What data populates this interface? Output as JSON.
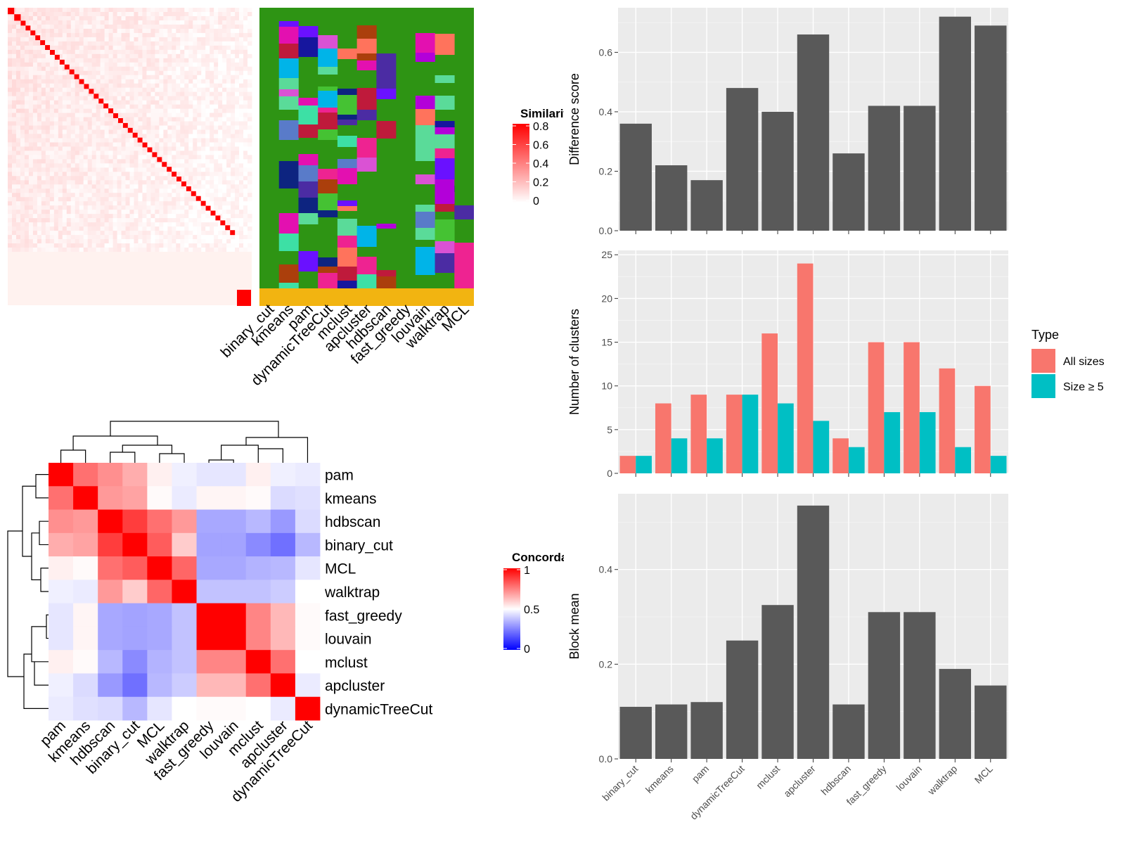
{
  "chart_data": [
    {
      "type": "heatmap",
      "id": "similarity_heatmap",
      "legend_title": "Similarity",
      "legend_ticks": [
        "0.8",
        "0.6",
        "0.4",
        "0.2",
        "0"
      ],
      "scale": {
        "min": 0,
        "max": 0.8,
        "low": "#ffffff",
        "high": "#ff0000"
      },
      "diagonal_blocks": [
        4,
        4,
        3,
        3,
        3,
        3,
        3,
        3,
        3,
        3,
        3,
        3,
        3,
        3,
        3,
        3,
        3,
        3,
        3,
        3,
        3,
        3,
        3,
        3,
        3,
        3,
        3,
        3,
        3,
        3,
        3,
        3,
        3,
        3,
        3,
        3,
        3,
        3,
        3,
        3,
        3,
        3,
        3,
        3,
        3,
        3,
        6
      ]
    },
    {
      "type": "heatmap",
      "id": "cluster_membership",
      "columns": [
        "binary_cut",
        "kmeans",
        "pam",
        "dynamicTreeCut",
        "mclust",
        "apcluster",
        "hdbscan",
        "fast_greedy",
        "louvain",
        "walktrap",
        "MCL"
      ]
    },
    {
      "type": "heatmap",
      "id": "concordance_heatmap",
      "legend_title": "Concordance",
      "legend_ticks": [
        "1",
        "0.5",
        "0"
      ],
      "rows": [
        "pam",
        "kmeans",
        "hdbscan",
        "binary_cut",
        "MCL",
        "walktrap",
        "fast_greedy",
        "louvain",
        "mclust",
        "apcluster",
        "dynamicTreeCut"
      ],
      "columns": [
        "pam",
        "kmeans",
        "hdbscan",
        "binary_cut",
        "MCL",
        "walktrap",
        "fast_greedy",
        "louvain",
        "mclust",
        "apcluster",
        "dynamicTreeCut"
      ],
      "values": [
        [
          1.0,
          0.78,
          0.72,
          0.66,
          0.53,
          0.47,
          0.45,
          0.45,
          0.53,
          0.47,
          0.46
        ],
        [
          0.78,
          1.0,
          0.7,
          0.68,
          0.51,
          0.46,
          0.52,
          0.52,
          0.51,
          0.43,
          0.44
        ],
        [
          0.72,
          0.7,
          1.0,
          0.88,
          0.78,
          0.7,
          0.33,
          0.33,
          0.36,
          0.3,
          0.43
        ],
        [
          0.66,
          0.68,
          0.88,
          1.0,
          0.82,
          0.6,
          0.32,
          0.32,
          0.27,
          0.22,
          0.36
        ],
        [
          0.53,
          0.51,
          0.78,
          0.82,
          1.0,
          0.8,
          0.33,
          0.33,
          0.35,
          0.36,
          0.45
        ],
        [
          0.47,
          0.46,
          0.7,
          0.6,
          0.8,
          1.0,
          0.38,
          0.38,
          0.38,
          0.4,
          0.5
        ],
        [
          0.45,
          0.52,
          0.33,
          0.32,
          0.33,
          0.38,
          1.0,
          1.0,
          0.74,
          0.64,
          0.51
        ],
        [
          0.45,
          0.52,
          0.33,
          0.32,
          0.33,
          0.38,
          1.0,
          1.0,
          0.74,
          0.64,
          0.51
        ],
        [
          0.53,
          0.51,
          0.36,
          0.27,
          0.35,
          0.38,
          0.74,
          0.74,
          1.0,
          0.78,
          0.5
        ],
        [
          0.47,
          0.43,
          0.3,
          0.22,
          0.36,
          0.4,
          0.64,
          0.64,
          0.78,
          1.0,
          0.46
        ],
        [
          0.46,
          0.44,
          0.43,
          0.36,
          0.45,
          0.5,
          0.51,
          0.51,
          0.5,
          0.46,
          1.0
        ]
      ]
    },
    {
      "type": "bar",
      "id": "difference_score",
      "categories": [
        "binary_cut",
        "kmeans",
        "pam",
        "dynamicTreeCut",
        "mclust",
        "apcluster",
        "hdbscan",
        "fast_greedy",
        "louvain",
        "walktrap",
        "MCL"
      ],
      "values": [
        0.36,
        0.22,
        0.17,
        0.48,
        0.4,
        0.66,
        0.26,
        0.42,
        0.42,
        0.72,
        0.69
      ],
      "ylabel": "Difference score",
      "ylim": [
        0,
        0.75
      ],
      "yticks": [
        "0.0",
        "0.2",
        "0.4",
        "0.6"
      ],
      "grid": true
    },
    {
      "type": "bar",
      "id": "number_of_clusters",
      "categories": [
        "binary_cut",
        "kmeans",
        "pam",
        "dynamicTreeCut",
        "mclust",
        "apcluster",
        "hdbscan",
        "fast_greedy",
        "louvain",
        "walktrap",
        "MCL"
      ],
      "series": [
        {
          "name": "All sizes",
          "values": [
            2,
            8,
            9,
            9,
            16,
            24,
            4,
            15,
            15,
            12,
            10
          ],
          "color": "#f8766d"
        },
        {
          "name": "Size ≥ 5",
          "values": [
            2,
            4,
            4,
            9,
            8,
            6,
            3,
            7,
            7,
            3,
            2
          ],
          "color": "#00bfc4"
        }
      ],
      "ylabel": "Number of clusters",
      "ylim": [
        0,
        25.5
      ],
      "yticks": [
        "0",
        "5",
        "10",
        "15",
        "20",
        "25"
      ],
      "legend_title": "Type",
      "legend_position": "right",
      "grid": true
    },
    {
      "type": "bar",
      "id": "block_mean",
      "categories": [
        "binary_cut",
        "kmeans",
        "pam",
        "dynamicTreeCut",
        "mclust",
        "apcluster",
        "hdbscan",
        "fast_greedy",
        "louvain",
        "walktrap",
        "MCL"
      ],
      "values": [
        0.11,
        0.115,
        0.12,
        0.25,
        0.325,
        0.535,
        0.115,
        0.31,
        0.31,
        0.19,
        0.155
      ],
      "ylabel": "Block mean",
      "ylim": [
        0,
        0.56
      ],
      "yticks": [
        "0.0",
        "0.2",
        "0.4"
      ],
      "grid": true
    }
  ],
  "colors": {
    "bar_dark": "#595959",
    "panel_bg": "#ebebeb",
    "grid": "#ffffff",
    "membership_palette": [
      "#2e9414",
      "#bf1a3b",
      "#b300d9",
      "#da52d4",
      "#ab3f0c",
      "#0d2480",
      "#ff735c",
      "#00b4e8",
      "#e310b0",
      "#4b2ca3",
      "#45c233",
      "#5adb99",
      "#16169e",
      "#597bc9",
      "#ee2391",
      "#6a11ff",
      "#3de0a5",
      "#f2b411"
    ]
  }
}
